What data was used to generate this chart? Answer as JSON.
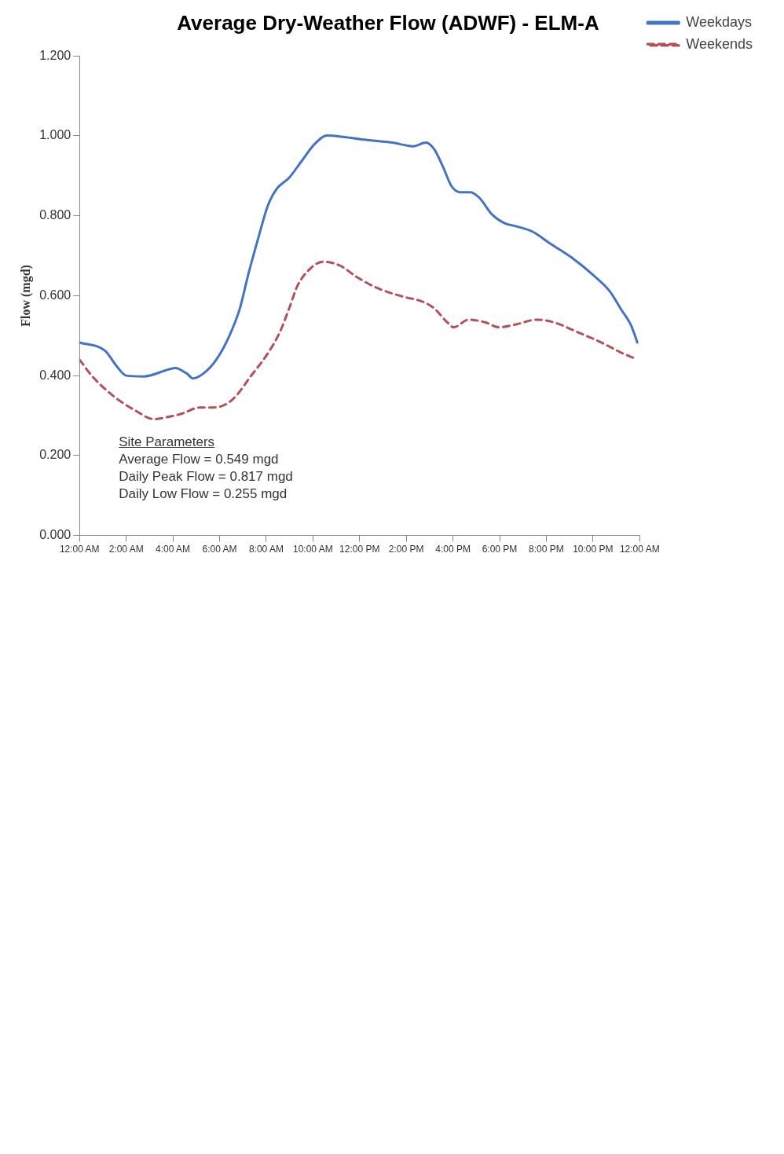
{
  "chart_data": {
    "type": "line",
    "title": "Average Dry-Weather Flow (ADWF) - ELM-A",
    "ylabel": "Flow (mgd)",
    "xlim": [
      0,
      24
    ],
    "xticks": [
      {
        "value": 0,
        "label": "12:00 AM"
      },
      {
        "value": 2,
        "label": "2:00 AM"
      },
      {
        "value": 4,
        "label": "4:00 AM"
      },
      {
        "value": 6,
        "label": "6:00 AM"
      },
      {
        "value": 8,
        "label": "8:00 AM"
      },
      {
        "value": 10,
        "label": "10:00 AM"
      },
      {
        "value": 12,
        "label": "12:00 PM"
      },
      {
        "value": 14,
        "label": "2:00 PM"
      },
      {
        "value": 16,
        "label": "4:00 PM"
      },
      {
        "value": 18,
        "label": "6:00 PM"
      },
      {
        "value": 20,
        "label": "8:00 PM"
      },
      {
        "value": 22,
        "label": "10:00 PM"
      },
      {
        "value": 24,
        "label": "12:00 AM"
      }
    ],
    "ylim": [
      0,
      1.2
    ],
    "yticks": [
      {
        "value": 0,
        "label": "0.000"
      },
      {
        "value": 0.2,
        "label": "0.200"
      },
      {
        "value": 0.4,
        "label": "0.400"
      },
      {
        "value": 0.6,
        "label": "0.600"
      },
      {
        "value": 0.8,
        "label": "0.800"
      },
      {
        "value": 1,
        "label": "1.000"
      },
      {
        "value": 1.2,
        "label": "1.200"
      }
    ],
    "grid": false,
    "legend": "top right",
    "marker": "none",
    "annotations": [
      "Site Parameters",
      "Average Flow = 0.549 mgd",
      "Daily Peak Flow = 0.817 mgd",
      "Daily Low Flow = 0.255 mgd"
    ],
    "series": [
      {
        "name": "Weekdays",
        "color": "#4472c4",
        "line_style": "solid",
        "x": [
          0,
          1.1,
          1.56,
          2.0,
          2.75,
          3.85,
          4.1,
          4.6,
          4.86,
          5.3,
          5.86,
          6.4,
          6.87,
          7.23,
          7.7,
          8.06,
          8.43,
          8.98,
          9.53,
          10.08,
          10.6,
          11.36,
          12.1,
          13.4,
          14.3,
          14.84,
          15.2,
          15.57,
          15.94,
          16.3,
          16.76,
          17.13,
          17.68,
          18.23,
          18.69,
          19.42,
          20.15,
          21.07,
          21.98,
          22.72,
          23.18,
          23.63,
          23.9
        ],
        "values": [
          0.483,
          0.462,
          0.426,
          0.4,
          0.398,
          0.416,
          0.419,
          0.405,
          0.393,
          0.405,
          0.44,
          0.497,
          0.568,
          0.653,
          0.753,
          0.824,
          0.866,
          0.895,
          0.938,
          0.98,
          1.001,
          0.997,
          0.991,
          0.983,
          0.974,
          0.983,
          0.966,
          0.923,
          0.874,
          0.859,
          0.859,
          0.845,
          0.803,
          0.781,
          0.774,
          0.76,
          0.731,
          0.696,
          0.653,
          0.611,
          0.568,
          0.526,
          0.483
        ]
      },
      {
        "name": "Weekends",
        "color": "#b5505a",
        "line_style": "dashed",
        "x": [
          0,
          0.55,
          1.47,
          2.38,
          3.2,
          3.66,
          4.4,
          5.13,
          5.68,
          6.23,
          6.69,
          7.33,
          8.06,
          8.6,
          8.98,
          9.34,
          9.89,
          10.44,
          11.17,
          11.9,
          12.8,
          13.9,
          14.7,
          15.2,
          15.76,
          16.03,
          16.67,
          17.4,
          17.96,
          18.69,
          19.6,
          20.34,
          21.25,
          22.35,
          23.3,
          23.8
        ],
        "values": [
          0.44,
          0.398,
          0.348,
          0.313,
          0.291,
          0.295,
          0.305,
          0.32,
          0.32,
          0.327,
          0.348,
          0.398,
          0.455,
          0.511,
          0.568,
          0.625,
          0.668,
          0.685,
          0.675,
          0.646,
          0.618,
          0.597,
          0.585,
          0.568,
          0.533,
          0.521,
          0.54,
          0.533,
          0.521,
          0.528,
          0.54,
          0.533,
          0.511,
          0.483,
          0.455,
          0.443
        ]
      }
    ]
  }
}
